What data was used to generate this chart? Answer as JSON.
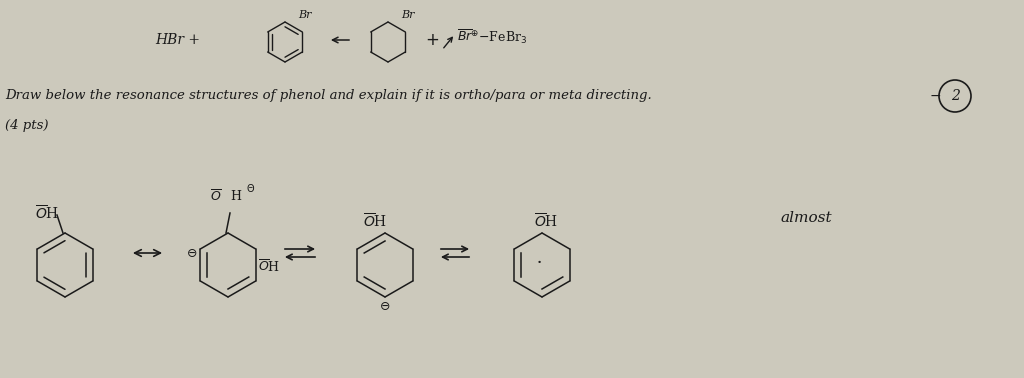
{
  "background_color": "#ccc9bc",
  "line1": "Draw below the resonance structures of phenol and explain if it is ortho/para or meta directing.",
  "line2": "(4 pts)",
  "annotation": "almost",
  "font_color": "#1a1a1a",
  "figsize": [
    10.24,
    3.78
  ],
  "dpi": 100
}
